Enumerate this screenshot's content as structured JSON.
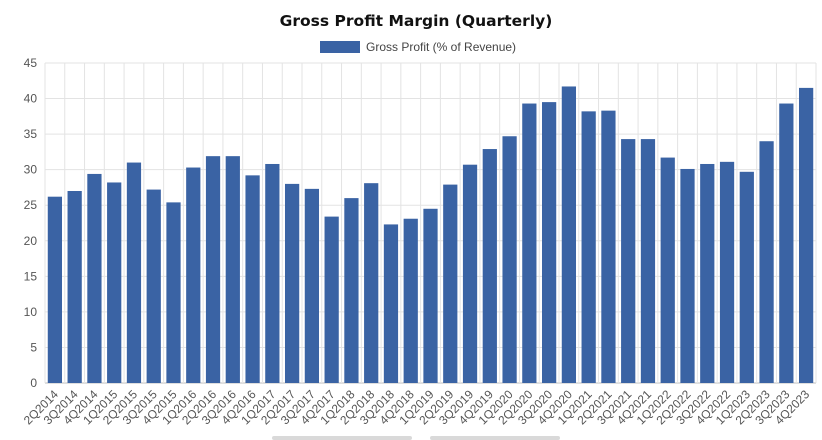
{
  "chart_data": {
    "type": "bar",
    "title": "Gross Profit Margin (Quarterly)",
    "xlabel": "",
    "ylabel": "",
    "ylim": [
      0,
      45
    ],
    "yticks": [
      0,
      5,
      10,
      15,
      20,
      25,
      30,
      35,
      40,
      45
    ],
    "grid": true,
    "legend_position": "top-center",
    "bar_color": "#3a63a4",
    "categories": [
      "2Q2014",
      "3Q2014",
      "4Q2014",
      "1Q2015",
      "2Q2015",
      "3Q2015",
      "4Q2015",
      "1Q2016",
      "2Q2016",
      "3Q2016",
      "4Q2016",
      "1Q2017",
      "2Q2017",
      "3Q2017",
      "4Q2017",
      "1Q2018",
      "2Q2018",
      "3Q2018",
      "4Q2018",
      "1Q2019",
      "2Q2019",
      "3Q2019",
      "4Q2019",
      "1Q2020",
      "2Q2020",
      "3Q2020",
      "4Q2020",
      "1Q2021",
      "2Q2021",
      "3Q2021",
      "4Q2021",
      "1Q2022",
      "2Q2022",
      "3Q2022",
      "4Q2022",
      "1Q2023",
      "2Q2023",
      "3Q2023",
      "4Q2023"
    ],
    "series": [
      {
        "name": "Gross Profit (% of Revenue)",
        "values": [
          26.2,
          27.0,
          29.4,
          28.2,
          31.0,
          27.2,
          25.4,
          30.3,
          31.9,
          31.9,
          29.2,
          30.8,
          28.0,
          27.3,
          23.4,
          26.0,
          28.1,
          22.3,
          23.1,
          24.5,
          27.9,
          30.7,
          32.9,
          34.7,
          39.3,
          39.5,
          41.7,
          38.2,
          38.3,
          34.3,
          34.3,
          31.7,
          30.1,
          30.8,
          31.1,
          29.7,
          34.0,
          39.3,
          41.5
        ]
      }
    ]
  }
}
